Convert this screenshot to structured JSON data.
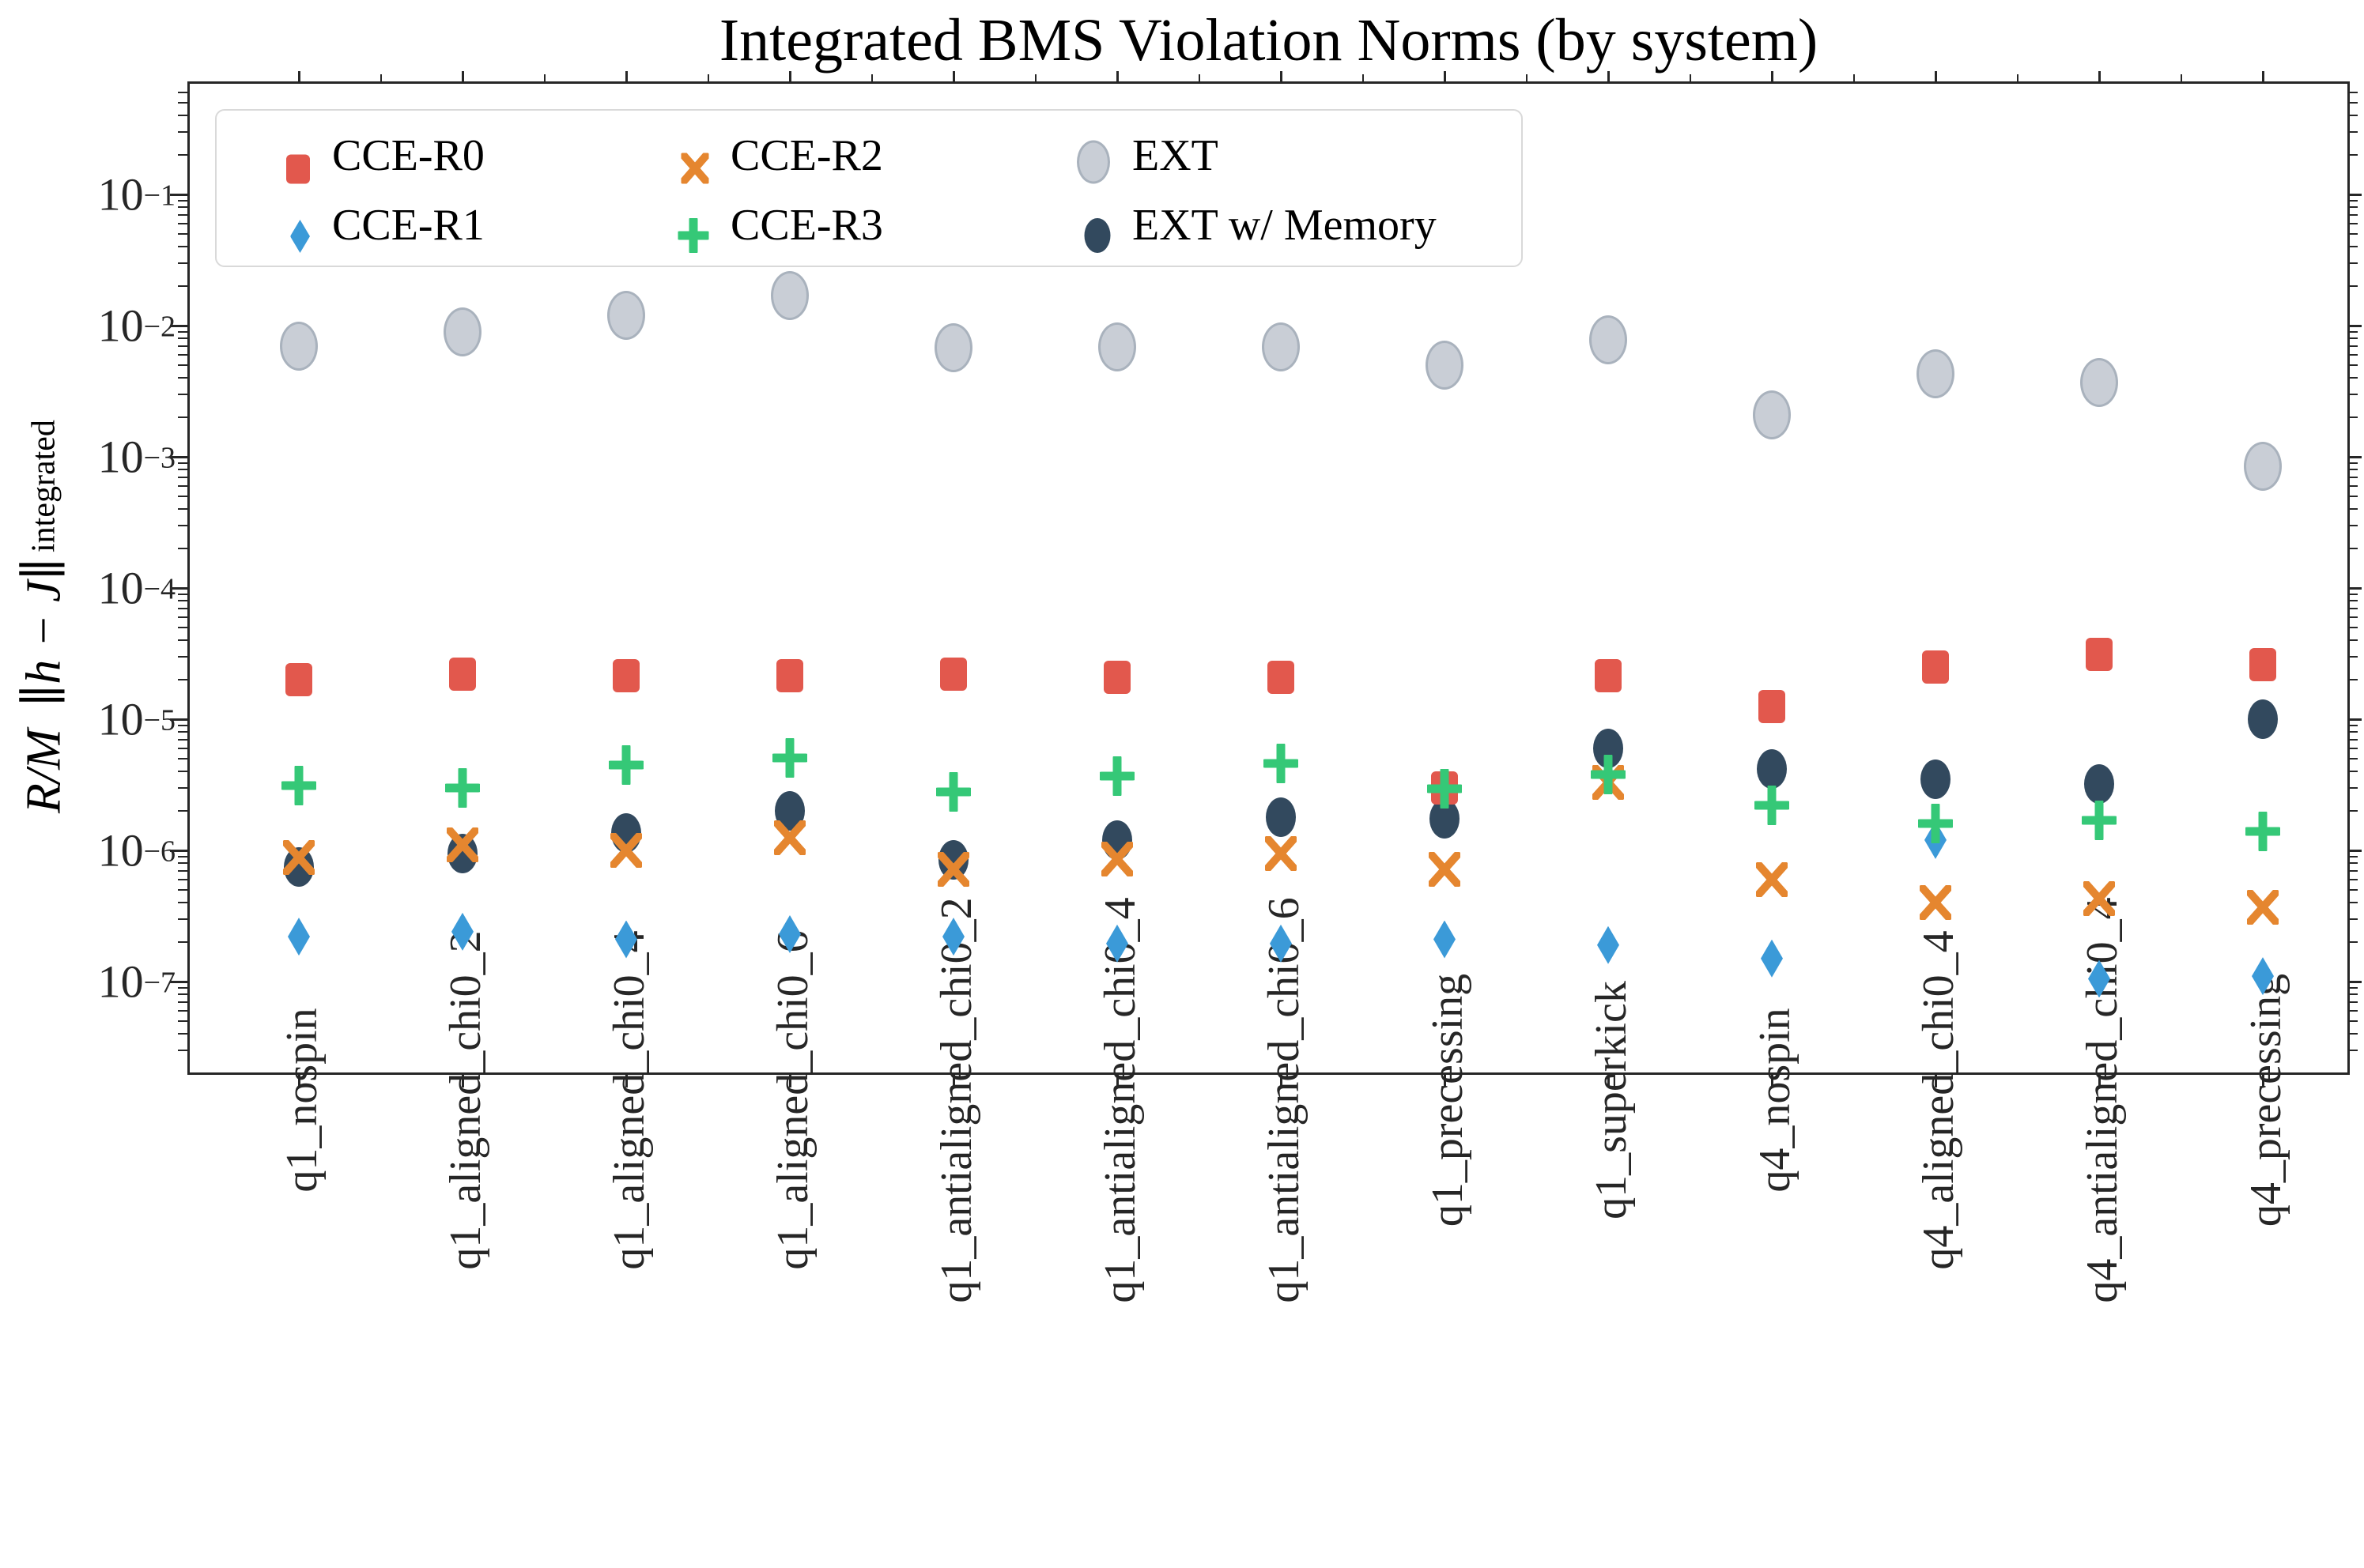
{
  "title": "Integrated BMS Violation Norms (by system)",
  "ylabel": {
    "main": "R/M ||h − J||",
    "sub": "integrated"
  },
  "colors": {
    "cce_r0": "#e2584d",
    "cce_r1": "#3b9ad8",
    "cce_r2": "#e5862f",
    "cce_r3": "#35c877",
    "ext_fill": "#c9ced6",
    "ext_edge": "#a9b2bd",
    "ext_mem": "#32495e",
    "spine": "#262626"
  },
  "chart_data": {
    "type": "scatter",
    "title": "Integrated BMS Violation Norms (by system)",
    "xlabel": "",
    "ylabel": "R/M ||h - J||_integrated",
    "yscale": "log",
    "ylim": [
      2e-08,
      0.7
    ],
    "ytick_exponents": [
      -1,
      -2,
      -3,
      -4,
      -5,
      -6,
      -7
    ],
    "grid": false,
    "legend_position": "upper left, 3 columns",
    "categories": [
      "q1_nospin",
      "q1_aligned_chi0_2",
      "q1_aligned_chi0_4",
      "q1_aligned_chi0_6",
      "q1_antialigned_chi0_2",
      "q1_antialigned_chi0_4",
      "q1_antialigned_chi0_6",
      "q1_precessing",
      "q1_superkick",
      "q4_nospin",
      "q4_aligned_chi0_4",
      "q4_antialigned_chi0_4",
      "q4_precessing"
    ],
    "series": [
      {
        "name": "CCE-R0",
        "marker": "square",
        "color": "#e2584d",
        "values": [
          2e-05,
          2.2e-05,
          2.15e-05,
          2.15e-05,
          2.2e-05,
          2.1e-05,
          2.1e-05,
          3e-06,
          2.15e-05,
          1.25e-05,
          2.5e-05,
          3.1e-05,
          2.6e-05
        ]
      },
      {
        "name": "CCE-R1",
        "marker": "thin-diamond",
        "color": "#3b9ad8",
        "values": [
          2.2e-07,
          2.4e-07,
          2.1e-07,
          2.3e-07,
          2.2e-07,
          1.95e-07,
          1.95e-07,
          2.1e-07,
          1.9e-07,
          1.5e-07,
          1.2e-06,
          1.05e-07,
          1.1e-07
        ]
      },
      {
        "name": "CCE-R2",
        "marker": "x",
        "color": "#e5862f",
        "values": [
          8.8e-07,
          1.1e-06,
          1e-06,
          1.25e-06,
          7.2e-07,
          8.6e-07,
          9.5e-07,
          7.2e-07,
          3.3e-06,
          6e-07,
          4e-07,
          4.3e-07,
          3.7e-07
        ]
      },
      {
        "name": "CCE-R3",
        "marker": "plus",
        "color": "#35c877",
        "values": [
          3.1e-06,
          3e-06,
          4.5e-06,
          5.1e-06,
          2.8e-06,
          3.7e-06,
          4.6e-06,
          2.95e-06,
          3.8e-06,
          2.2e-06,
          1.6e-06,
          1.7e-06,
          1.4e-06
        ]
      },
      {
        "name": "EXT",
        "marker": "circle-open",
        "color": "#c9ced6",
        "edge": "#a9b2bd",
        "values": [
          0.007,
          0.009,
          0.012,
          0.017,
          0.0068,
          0.0069,
          0.0069,
          0.005,
          0.0078,
          0.0021,
          0.0043,
          0.0037,
          0.00085
        ]
      },
      {
        "name": "EXT w/ Memory",
        "marker": "circle",
        "color": "#32495e",
        "values": [
          7.5e-07,
          9.5e-07,
          1.35e-06,
          2e-06,
          8.5e-07,
          1.2e-06,
          1.8e-06,
          1.75e-06,
          6e-06,
          4.2e-06,
          3.5e-06,
          3.2e-06,
          1e-05
        ]
      }
    ]
  }
}
